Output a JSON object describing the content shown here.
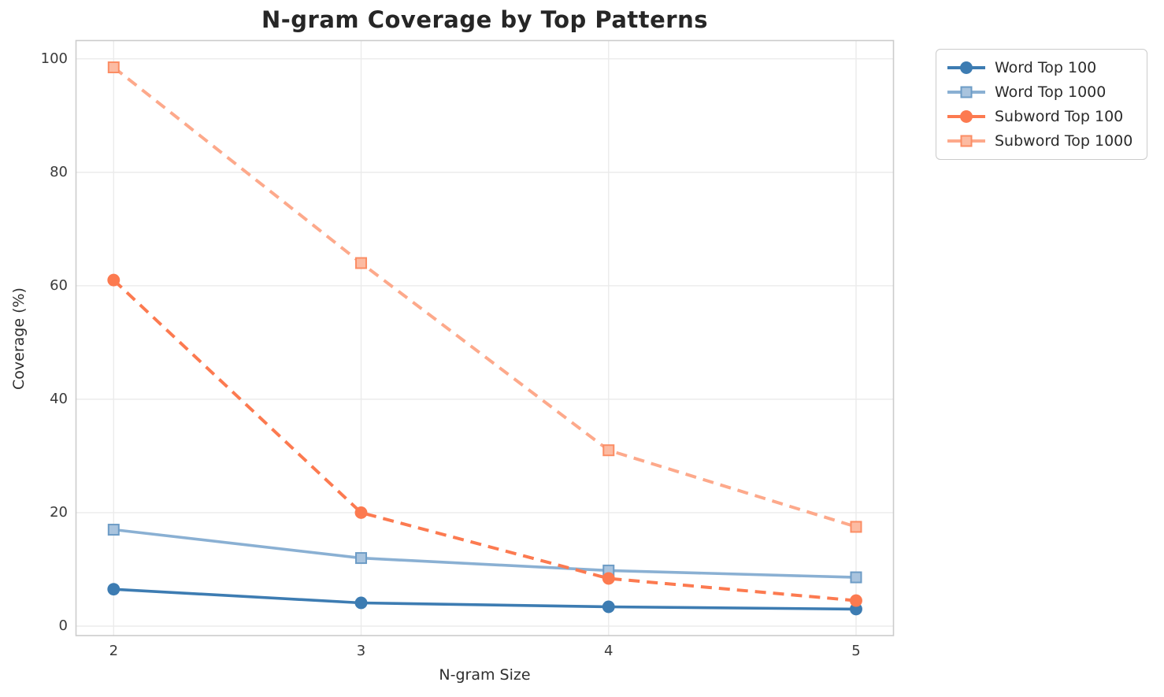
{
  "chart_data": {
    "type": "line",
    "title": "N-gram Coverage by Top Patterns",
    "xlabel": "N-gram Size",
    "ylabel": "Coverage (%)",
    "x": [
      2,
      3,
      4,
      5
    ],
    "xticks": [
      "2",
      "3",
      "4",
      "5"
    ],
    "yticks": [
      "0",
      "20",
      "40",
      "60",
      "80",
      "100"
    ],
    "ylim": [
      0,
      100
    ],
    "grid": true,
    "legend_position": "outside-upper-right",
    "colors": {
      "grid": "#ebebeb",
      "spine": "#cccccc",
      "title_text": "#262626",
      "tick_text": "#3a3a3a"
    },
    "series": [
      {
        "name": "Word Top 100",
        "color": "#3d7cb2",
        "marker": "circle",
        "marker_face": "#3d7cb2",
        "marker_edge": "#3d7cb2",
        "linestyle": "solid",
        "values": [
          6.5,
          4.1,
          3.4,
          3.0
        ]
      },
      {
        "name": "Word Top 1000",
        "color": "#8ab0d3",
        "marker": "square",
        "marker_face": "#a9c4de",
        "marker_edge": "#6d9cc6",
        "linestyle": "solid",
        "values": [
          17.0,
          12.0,
          9.8,
          8.6
        ]
      },
      {
        "name": "Subword Top 100",
        "color": "#fc7a50",
        "marker": "circle",
        "marker_face": "#fc7a50",
        "marker_edge": "#fc7a50",
        "linestyle": "dashed",
        "values": [
          61.0,
          20.0,
          8.4,
          4.5
        ]
      },
      {
        "name": "Subword Top 1000",
        "color": "#fda98b",
        "marker": "square",
        "marker_face": "#fcbba2",
        "marker_edge": "#fb8d64",
        "linestyle": "dashed",
        "values": [
          98.5,
          64.0,
          31.0,
          17.5
        ]
      }
    ]
  }
}
